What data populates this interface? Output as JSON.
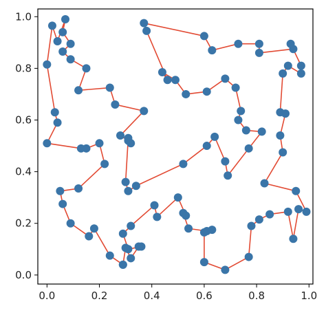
{
  "chart_data": {
    "type": "line",
    "title": "",
    "xlabel": "",
    "ylabel": "",
    "xlim": [
      -0.035,
      1.015
    ],
    "ylim": [
      -0.035,
      1.03
    ],
    "grid": false,
    "x_ticks": [
      "0.0",
      "0.2",
      "0.4",
      "0.6",
      "0.8",
      "1.0"
    ],
    "y_ticks": [
      "0.0",
      "0.2",
      "0.4",
      "0.6",
      "0.8",
      "1.0"
    ],
    "x_tick_values": [
      0.0,
      0.2,
      0.4,
      0.6,
      0.8,
      1.0
    ],
    "y_tick_values": [
      0.0,
      0.2,
      0.4,
      0.6,
      0.8,
      1.0
    ],
    "series": [
      {
        "line_color": "#e24a33",
        "marker_color": "#3a75a8",
        "closed": true,
        "x": [
          0.02,
          0.04,
          0.07,
          0.06,
          0.09,
          0.06,
          0.09,
          0.15,
          0.12,
          0.24,
          0.26,
          0.37,
          0.28,
          0.31,
          0.32,
          0.31,
          0.3,
          0.31,
          0.34,
          0.52,
          0.61,
          0.64,
          0.68,
          0.69,
          0.77,
          0.82,
          0.76,
          0.73,
          0.74,
          0.72,
          0.68,
          0.61,
          0.53,
          0.49,
          0.44,
          0.46,
          0.38,
          0.37,
          0.6,
          0.63,
          0.73,
          0.81,
          0.81,
          0.94,
          0.93,
          0.97,
          0.97,
          0.92,
          0.9,
          0.89,
          0.91,
          0.89,
          0.9,
          0.83,
          0.95,
          0.99,
          0.96,
          0.94,
          0.92,
          0.85,
          0.81,
          0.78,
          0.77,
          0.68,
          0.6,
          0.6,
          0.63,
          0.61,
          0.54,
          0.52,
          0.53,
          0.5,
          0.42,
          0.41,
          0.32,
          0.29,
          0.31,
          0.36,
          0.35,
          0.32,
          0.3,
          0.29,
          0.29,
          0.24,
          0.18,
          0.16,
          0.09,
          0.06,
          0.05,
          0.12,
          0.22,
          0.2,
          0.15,
          0.13,
          0.0,
          0.04,
          0.03,
          0.0
        ],
        "y": [
          0.965,
          0.905,
          0.99,
          0.94,
          0.895,
          0.865,
          0.835,
          0.8,
          0.715,
          0.725,
          0.66,
          0.635,
          0.54,
          0.52,
          0.51,
          0.53,
          0.36,
          0.325,
          0.345,
          0.43,
          0.5,
          0.535,
          0.44,
          0.385,
          0.49,
          0.555,
          0.56,
          0.6,
          0.635,
          0.725,
          0.76,
          0.71,
          0.7,
          0.755,
          0.785,
          0.755,
          0.945,
          0.975,
          0.925,
          0.87,
          0.895,
          0.895,
          0.86,
          0.875,
          0.895,
          0.81,
          0.78,
          0.81,
          0.78,
          0.63,
          0.625,
          0.54,
          0.475,
          0.355,
          0.325,
          0.245,
          0.255,
          0.14,
          0.245,
          0.235,
          0.215,
          0.19,
          0.07,
          0.02,
          0.05,
          0.165,
          0.175,
          0.17,
          0.18,
          0.24,
          0.23,
          0.3,
          0.225,
          0.27,
          0.19,
          0.16,
          0.1,
          0.11,
          0.11,
          0.065,
          0.105,
          0.04,
          0.04,
          0.075,
          0.18,
          0.15,
          0.2,
          0.275,
          0.325,
          0.335,
          0.43,
          0.51,
          0.49,
          0.49,
          0.51,
          0.59,
          0.63,
          0.815
        ]
      }
    ]
  }
}
